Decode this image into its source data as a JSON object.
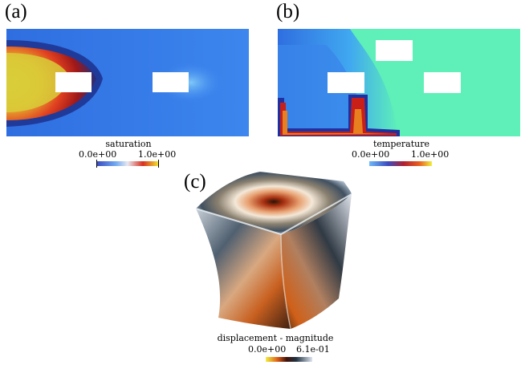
{
  "panels": {
    "a": {
      "letter": "(a)",
      "colorbar": {
        "title": "saturation",
        "min_label": "0.0e+00",
        "max_label": "1.0e+00"
      }
    },
    "b": {
      "letter": "(b)",
      "colorbar": {
        "title": "temperature",
        "min_label": "0.0e+00",
        "max_label": "1.0e+00"
      }
    },
    "c": {
      "letter": "(c)",
      "colorbar": {
        "title": "displacement - magnitude",
        "min_label": "0.0e+00",
        "max_label": "6.1e-01"
      }
    }
  },
  "colors": {
    "cool_warm_low": "#3b4cc0",
    "cool_warm_high": "#f0e030",
    "field_background_a": "#3e7ee8",
    "field_background_b": "#5ef0b8",
    "cube_shadow": "#4a3a2e"
  }
}
